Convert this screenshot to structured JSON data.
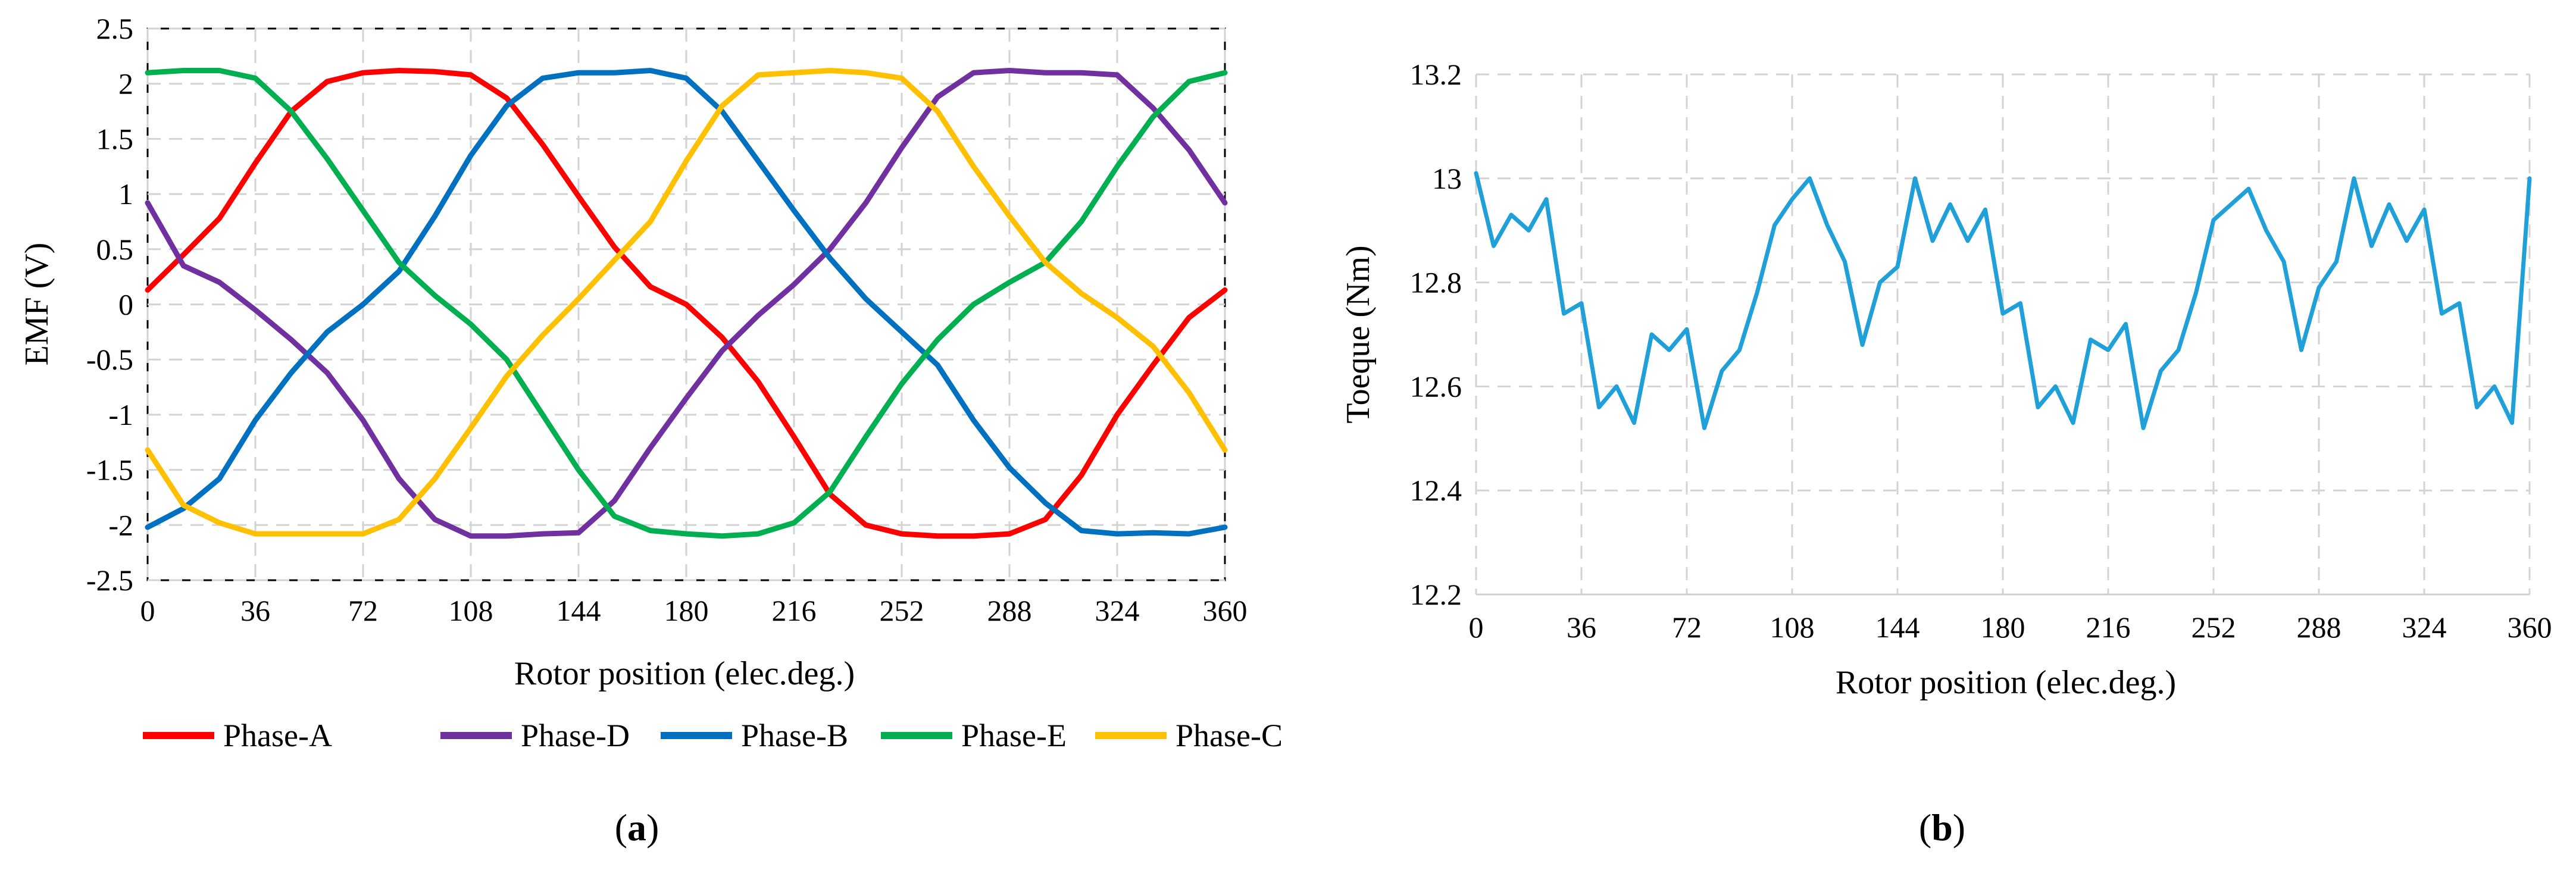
{
  "chart_data": [
    {
      "panel": "(a)",
      "type": "line",
      "xlabel": "Rotor position (elec.deg.)",
      "ylabel": "EMF (V)",
      "xlim": [
        0,
        360
      ],
      "ylim": [
        -2.5,
        2.5
      ],
      "x_ticks": [
        0,
        36,
        72,
        108,
        144,
        180,
        216,
        252,
        288,
        324,
        360
      ],
      "y_ticks": [
        -2.5,
        -2,
        -1.5,
        -1,
        -0.5,
        0,
        0.5,
        1,
        1.5,
        2,
        2.5
      ],
      "grid": true,
      "legend_position": "bottom",
      "x": [
        0,
        12,
        24,
        36,
        48,
        60,
        72,
        84,
        96,
        108,
        120,
        132,
        144,
        156,
        168,
        180,
        192,
        204,
        216,
        228,
        240,
        252,
        264,
        276,
        288,
        300,
        312,
        324,
        336,
        348,
        360
      ],
      "series": [
        {
          "name": "Phase-A",
          "color": "#ff0000",
          "values": [
            0.13,
            0.45,
            0.78,
            1.28,
            1.75,
            2.02,
            2.1,
            2.12,
            2.11,
            2.08,
            1.87,
            1.45,
            0.98,
            0.52,
            0.16,
            0.0,
            -0.3,
            -0.7,
            -1.2,
            -1.72,
            -2.0,
            -2.08,
            -2.1,
            -2.1,
            -2.08,
            -1.95,
            -1.55,
            -1.0,
            -0.55,
            -0.12,
            0.13
          ]
        },
        {
          "name": "Phase-D",
          "color": "#7030a0",
          "values": [
            0.92,
            0.35,
            0.2,
            -0.05,
            -0.32,
            -0.62,
            -1.05,
            -1.58,
            -1.95,
            -2.1,
            -2.1,
            -2.08,
            -2.07,
            -1.78,
            -1.3,
            -0.85,
            -0.42,
            -0.1,
            0.18,
            0.5,
            0.92,
            1.42,
            1.88,
            2.1,
            2.12,
            2.1,
            2.1,
            2.08,
            1.78,
            1.4,
            0.92
          ]
        },
        {
          "name": "Phase-B",
          "color": "#0070c0",
          "values": [
            -2.02,
            -1.85,
            -1.58,
            -1.05,
            -0.62,
            -0.25,
            0.0,
            0.3,
            0.8,
            1.35,
            1.8,
            2.05,
            2.1,
            2.1,
            2.12,
            2.05,
            1.75,
            1.3,
            0.85,
            0.42,
            0.05,
            -0.25,
            -0.55,
            -1.05,
            -1.48,
            -1.8,
            -2.05,
            -2.08,
            -2.07,
            -2.08,
            -2.02
          ]
        },
        {
          "name": "Phase-E",
          "color": "#00b050",
          "values": [
            2.1,
            2.12,
            2.12,
            2.05,
            1.75,
            1.32,
            0.85,
            0.38,
            0.08,
            -0.18,
            -0.5,
            -1.0,
            -1.5,
            -1.92,
            -2.05,
            -2.08,
            -2.1,
            -2.08,
            -1.98,
            -1.7,
            -1.2,
            -0.72,
            -0.32,
            0.0,
            0.2,
            0.38,
            0.75,
            1.25,
            1.7,
            2.02,
            2.1
          ]
        },
        {
          "name": "Phase-C",
          "color": "#ffc000",
          "values": [
            -1.32,
            -1.82,
            -1.98,
            -2.08,
            -2.08,
            -2.08,
            -2.08,
            -1.95,
            -1.58,
            -1.12,
            -0.65,
            -0.28,
            0.05,
            0.4,
            0.75,
            1.3,
            1.8,
            2.08,
            2.1,
            2.12,
            2.1,
            2.05,
            1.75,
            1.25,
            0.8,
            0.38,
            0.1,
            -0.12,
            -0.38,
            -0.8,
            -1.32
          ]
        }
      ]
    },
    {
      "panel": "(b)",
      "type": "line",
      "xlabel": "Rotor position (elec.deg.)",
      "ylabel": "Toeque (Nm)",
      "xlim": [
        0,
        360
      ],
      "ylim": [
        12.2,
        13.2
      ],
      "x_ticks": [
        0,
        36,
        72,
        108,
        144,
        180,
        216,
        252,
        288,
        324,
        360
      ],
      "y_ticks": [
        12.2,
        12.4,
        12.6,
        12.8,
        13,
        13.2
      ],
      "grid": true,
      "x": [
        0,
        6,
        12,
        18,
        24,
        30,
        36,
        42,
        48,
        54,
        60,
        66,
        72,
        78,
        84,
        90,
        96,
        102,
        108,
        114,
        120,
        126,
        132,
        138,
        144,
        150,
        156,
        162,
        168,
        174,
        180,
        186,
        192,
        198,
        204,
        210,
        216,
        222,
        228,
        234,
        240,
        246,
        252,
        258,
        264,
        270,
        276,
        282,
        288,
        294,
        300,
        306,
        312,
        318,
        324,
        330,
        336,
        342,
        348,
        354,
        360
      ],
      "series": [
        {
          "color": "#1fa0d8",
          "values": [
            13.01,
            12.87,
            12.93,
            12.9,
            12.96,
            12.74,
            12.76,
            12.56,
            12.6,
            12.53,
            12.7,
            12.67,
            12.71,
            12.52,
            12.63,
            12.67,
            12.78,
            12.91,
            12.96,
            13.0,
            12.91,
            12.84,
            12.68,
            12.8,
            12.83,
            13.0,
            12.88,
            12.95,
            12.88,
            12.94,
            12.74,
            12.76,
            12.56,
            12.6,
            12.53,
            12.69,
            12.67,
            12.72,
            12.52,
            12.63,
            12.67,
            12.78,
            12.92,
            12.95,
            12.98,
            12.9,
            12.84,
            12.67,
            12.79,
            12.84,
            13.0,
            12.87,
            12.95,
            12.88,
            12.94,
            12.74,
            12.76,
            12.56,
            12.6,
            12.53,
            13.0
          ]
        }
      ]
    }
  ]
}
